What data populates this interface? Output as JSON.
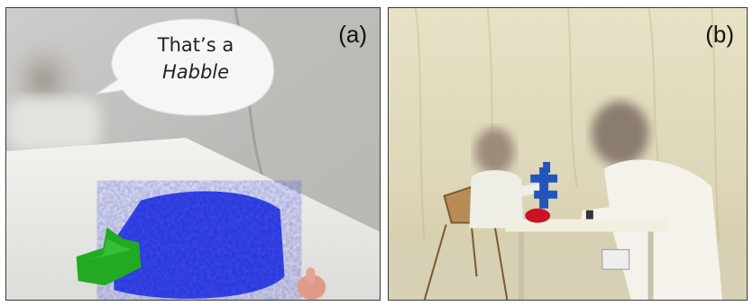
{
  "panels": [
    {
      "label": "(a)",
      "speech_bubble": {
        "line1": "That’s a",
        "line2": "Habble"
      },
      "colors": {
        "object": "#2233dd",
        "toy": "#22aa22"
      }
    },
    {
      "label": "(b)",
      "colors": {
        "toy": "#2255bb",
        "object": "#cc1122"
      }
    }
  ]
}
